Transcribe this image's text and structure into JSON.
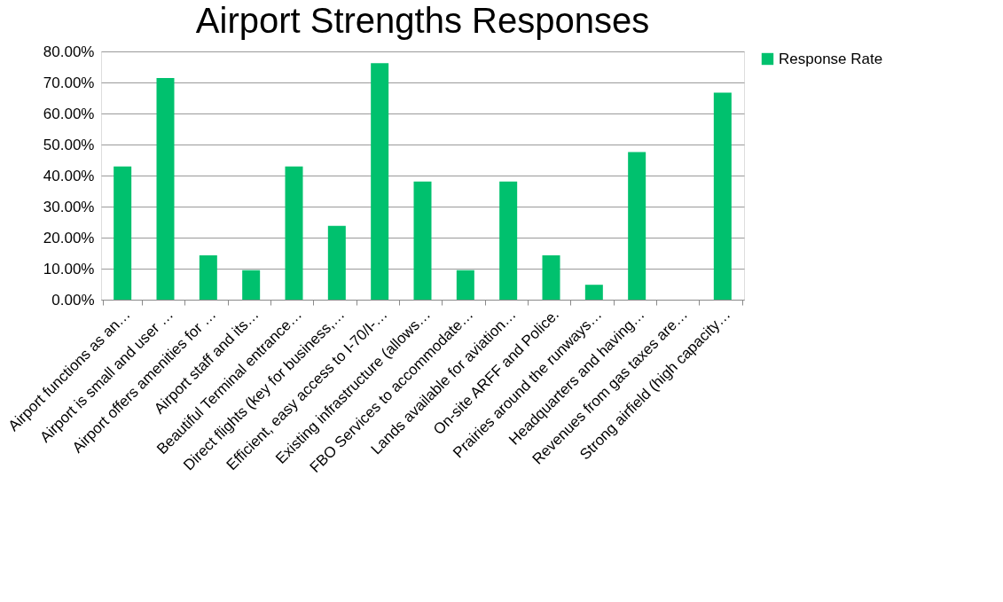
{
  "chart_data": {
    "type": "bar",
    "title": "Airport Strengths Responses",
    "categories": [
      "Airport functions as an…",
      "Airport is small and user …",
      "Airport offers amenities for …",
      "Airport staff and its…",
      "Beautiful Terminal entrance…",
      "Direct flights (key for business,…",
      "Efficient, easy access to I-70/I-…",
      "Existing infrastructure (allows…",
      "FBO Services to accommodate…",
      "Lands available for aviation…",
      "On-site ARFF and Police.",
      "Prairies around the runways…",
      "Headquarters and having…",
      "Revenues from gas taxes are…",
      "Strong airfield (high capacity…"
    ],
    "series": [
      {
        "name": "Response Rate",
        "color": "#00c16e",
        "values": [
          42.9,
          71.4,
          14.3,
          9.5,
          42.9,
          23.8,
          76.2,
          38.1,
          9.5,
          38.1,
          14.3,
          4.8,
          47.6,
          0,
          66.7
        ]
      }
    ],
    "ylim": [
      0,
      80
    ],
    "yticks": [
      {
        "value": 0,
        "label": "0.00%"
      },
      {
        "value": 10,
        "label": "10.00%"
      },
      {
        "value": 20,
        "label": "20.00%"
      },
      {
        "value": 30,
        "label": "30.00%"
      },
      {
        "value": 40,
        "label": "40.00%"
      },
      {
        "value": 50,
        "label": "50.00%"
      },
      {
        "value": 60,
        "label": "60.00%"
      },
      {
        "value": 70,
        "label": "70.00%"
      },
      {
        "value": 80,
        "label": "80.00%"
      }
    ],
    "grid": "y",
    "legend": "right"
  }
}
